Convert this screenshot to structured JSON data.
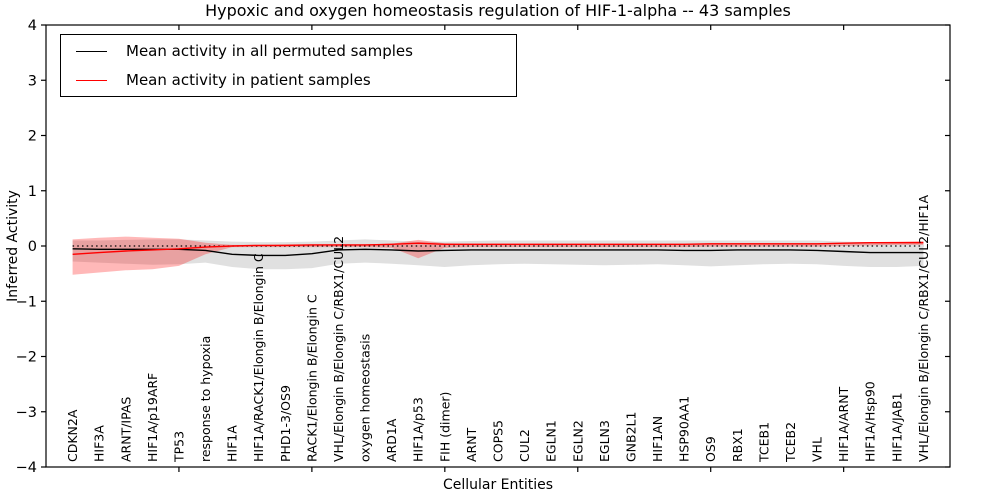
{
  "chart_data": {
    "type": "line",
    "title": "Hypoxic and oxygen homeostasis regulation of HIF-1-alpha -- 43 samples",
    "xlabel": "Cellular Entities",
    "ylabel": "Inferred Activity",
    "ylim": [
      -4,
      4
    ],
    "yticks": [
      4,
      3,
      2,
      1,
      0,
      -1,
      -2,
      -3,
      -4
    ],
    "x_range": [
      0,
      34
    ],
    "x_major_tick_every": 5,
    "grid": false,
    "legend_position": "upper-left",
    "categories": [
      "CDKN2A",
      "HIF3A",
      "ARNT/IPAS",
      "HIF1A/p19ARF",
      "TP53",
      "response to hypoxia",
      "HIF1A",
      "HIF1A/RACK1/Elongin B/Elongin C",
      "PHD1-3/OS9",
      "RACK1/Elongin B/Elongin C",
      "VHL/Elongin B/Elongin C/RBX1/CUL2",
      "oxygen homeostasis",
      "ARD1A",
      "HIF1A/p53",
      "FIH (dimer)",
      "ARNT",
      "COPS5",
      "CUL2",
      "EGLN1",
      "EGLN2",
      "EGLN3",
      "GNB2L1",
      "HIF1AN",
      "HSP90AA1",
      "OS9",
      "RBX1",
      "TCEB1",
      "TCEB2",
      "VHL",
      "HIF1A/ARNT",
      "HIF1A/Hsp90",
      "HIF1A/JAB1",
      "VHL/Elongin B/Elongin C/RBX1/CUL2/HIF1A"
    ],
    "series": [
      {
        "name": "Mean activity in all permuted samples",
        "color": "#000000",
        "style": "solid",
        "values": [
          -0.05,
          -0.06,
          -0.06,
          -0.06,
          -0.06,
          -0.08,
          -0.15,
          -0.17,
          -0.17,
          -0.14,
          -0.07,
          -0.06,
          -0.07,
          -0.09,
          -0.08,
          -0.07,
          -0.07,
          -0.07,
          -0.07,
          -0.07,
          -0.07,
          -0.07,
          -0.07,
          -0.08,
          -0.08,
          -0.07,
          -0.07,
          -0.07,
          -0.08,
          -0.1,
          -0.12,
          -0.12,
          -0.12
        ]
      },
      {
        "name": "Mean activity in patient samples",
        "color": "#ff0000",
        "style": "solid",
        "values": [
          -0.15,
          -0.12,
          -0.09,
          -0.07,
          -0.05,
          -0.02,
          0.0,
          0.01,
          0.01,
          0.02,
          0.02,
          0.02,
          0.03,
          0.05,
          0.03,
          0.03,
          0.03,
          0.03,
          0.03,
          0.03,
          0.03,
          0.03,
          0.03,
          0.03,
          0.04,
          0.04,
          0.04,
          0.04,
          0.04,
          0.05,
          0.06,
          0.06,
          0.06
        ]
      }
    ],
    "bands": [
      {
        "name": "permuted-samples-range",
        "color": "#999999",
        "opacity": 0.3,
        "upper": [
          0.1,
          0.1,
          0.11,
          0.12,
          0.12,
          0.1,
          0.08,
          0.07,
          0.07,
          0.08,
          0.1,
          0.12,
          0.1,
          0.08,
          0.08,
          0.09,
          0.1,
          0.1,
          0.1,
          0.1,
          0.1,
          0.1,
          0.1,
          0.1,
          0.1,
          0.1,
          0.1,
          0.1,
          0.1,
          0.08,
          0.07,
          0.07,
          0.08
        ],
        "lower": [
          -0.28,
          -0.3,
          -0.32,
          -0.34,
          -0.33,
          -0.3,
          -0.38,
          -0.42,
          -0.42,
          -0.4,
          -0.32,
          -0.3,
          -0.32,
          -0.35,
          -0.38,
          -0.35,
          -0.33,
          -0.32,
          -0.33,
          -0.34,
          -0.35,
          -0.34,
          -0.33,
          -0.35,
          -0.37,
          -0.35,
          -0.33,
          -0.32,
          -0.33,
          -0.36,
          -0.38,
          -0.38,
          -0.36
        ]
      },
      {
        "name": "patient-samples-range",
        "color": "#ff0000",
        "opacity": 0.28,
        "upper": [
          0.12,
          0.15,
          0.17,
          0.15,
          0.13,
          0.06,
          0.02,
          0.02,
          0.03,
          0.03,
          0.03,
          0.03,
          0.04,
          0.11,
          0.05,
          0.04,
          0.04,
          0.04,
          0.04,
          0.04,
          0.04,
          0.04,
          0.04,
          0.04,
          0.05,
          0.05,
          0.05,
          0.05,
          0.05,
          0.06,
          0.07,
          0.08,
          0.09
        ],
        "lower": [
          -0.52,
          -0.48,
          -0.44,
          -0.42,
          -0.36,
          -0.15,
          -0.02,
          -0.02,
          -0.02,
          -0.02,
          -0.02,
          -0.02,
          -0.03,
          -0.22,
          -0.03,
          -0.02,
          -0.02,
          -0.02,
          -0.02,
          -0.02,
          -0.02,
          -0.02,
          -0.02,
          -0.02,
          -0.01,
          -0.01,
          -0.01,
          -0.01,
          -0.01,
          0.0,
          0.01,
          0.02,
          0.02
        ]
      }
    ],
    "reference_line": {
      "y": 0,
      "style": "dotted",
      "color": "#000000"
    }
  }
}
